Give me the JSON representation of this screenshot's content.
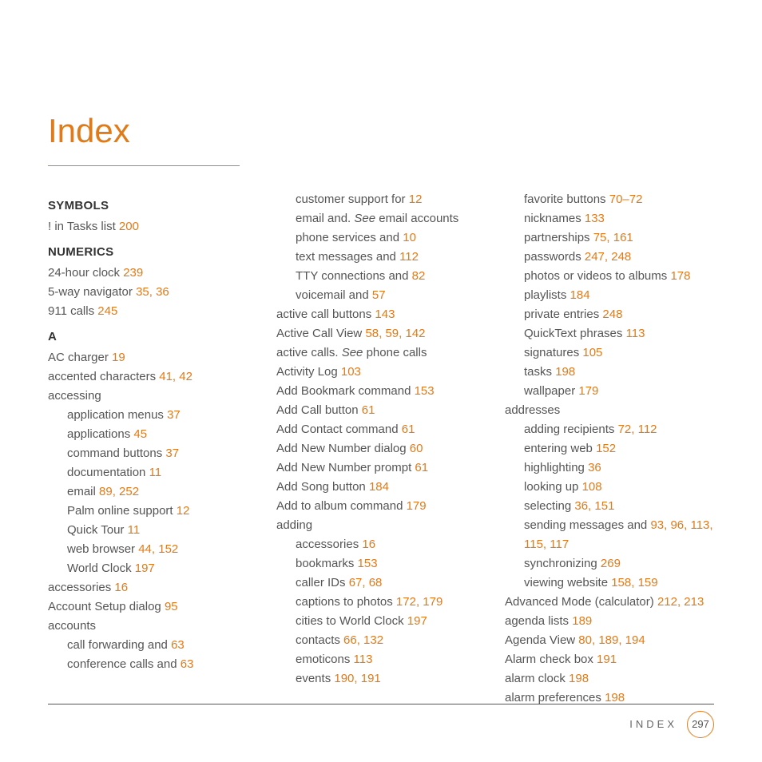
{
  "title": "Index",
  "accent": "#e07b1a",
  "footer": {
    "label": "INDEX",
    "page": "297"
  },
  "col1": {
    "h_symbols": "SYMBOLS",
    "e1": {
      "t": "! in Tasks list ",
      "p": "200"
    },
    "h_numerics": "NUMERICS",
    "e2": {
      "t": "24-hour clock ",
      "p": "239"
    },
    "e3": {
      "t": "5-way navigator ",
      "p": "35, 36"
    },
    "e4": {
      "t": "911 calls ",
      "p": "245"
    },
    "h_a": "A",
    "e5": {
      "t": "AC charger ",
      "p": "19"
    },
    "e6": {
      "t": "accented characters ",
      "p": "41, 42"
    },
    "e7": {
      "t": "accessing"
    },
    "e8": {
      "t": "application menus ",
      "p": "37"
    },
    "e9": {
      "t": "applications ",
      "p": "45"
    },
    "e10": {
      "t": "command buttons ",
      "p": "37"
    },
    "e11": {
      "t": "documentation ",
      "p": "11"
    },
    "e12": {
      "t": "email ",
      "p": "89, 252"
    },
    "e13": {
      "t": "Palm online support ",
      "p": "12"
    },
    "e14": {
      "t": "Quick Tour ",
      "p": "11"
    },
    "e15": {
      "t": "web browser ",
      "p": "44, 152"
    },
    "e16": {
      "t": "World Clock ",
      "p": "197"
    },
    "e17": {
      "t": "accessories ",
      "p": "16"
    },
    "e18": {
      "t": "Account Setup dialog ",
      "p": "95"
    },
    "e19": {
      "t": "accounts"
    },
    "e20": {
      "t": "call forwarding and ",
      "p": "63"
    },
    "e21": {
      "t": "conference calls and ",
      "p": "63"
    }
  },
  "col2": {
    "e1": {
      "t": "customer support for ",
      "p": "12"
    },
    "e2a": "email and. ",
    "e2b": "See",
    "e2c": " email accounts",
    "e3": {
      "t": "phone services and ",
      "p": "10"
    },
    "e4": {
      "t": "text messages and ",
      "p": "112"
    },
    "e5": {
      "t": "TTY connections and ",
      "p": "82"
    },
    "e6": {
      "t": "voicemail and ",
      "p": "57"
    },
    "e7": {
      "t": "active call buttons ",
      "p": "143"
    },
    "e8": {
      "t": "Active Call View ",
      "p": "58, 59, 142"
    },
    "e9a": "active calls. ",
    "e9b": "See",
    "e9c": " phone calls",
    "e10": {
      "t": "Activity Log ",
      "p": "103"
    },
    "e11": {
      "t": "Add Bookmark command ",
      "p": "153"
    },
    "e12": {
      "t": "Add Call button ",
      "p": "61"
    },
    "e13": {
      "t": "Add Contact command ",
      "p": "61"
    },
    "e14": {
      "t": "Add New Number dialog ",
      "p": "60"
    },
    "e15": {
      "t": "Add New Number prompt ",
      "p": "61"
    },
    "e16": {
      "t": "Add Song button ",
      "p": "184"
    },
    "e17": {
      "t": "Add to album command ",
      "p": "179"
    },
    "e18": {
      "t": "adding"
    },
    "e19": {
      "t": "accessories ",
      "p": "16"
    },
    "e20": {
      "t": "bookmarks ",
      "p": "153"
    },
    "e21": {
      "t": "caller IDs ",
      "p": "67, 68"
    },
    "e22": {
      "t": "captions to photos ",
      "p": "172, 179"
    },
    "e23": {
      "t": "cities to World Clock ",
      "p": "197"
    },
    "e24": {
      "t": "contacts ",
      "p": "66, 132"
    },
    "e25": {
      "t": "emoticons ",
      "p": "113"
    },
    "e26": {
      "t": "events ",
      "p": "190, 191"
    }
  },
  "col3": {
    "e1": {
      "t": "favorite buttons ",
      "p": "70–72"
    },
    "e2": {
      "t": "nicknames ",
      "p": "133"
    },
    "e3": {
      "t": "partnerships ",
      "p": "75, 161"
    },
    "e4": {
      "t": "passwords ",
      "p": "247, 248"
    },
    "e5": {
      "t": "photos or videos to albums ",
      "p": "178"
    },
    "e6": {
      "t": "playlists ",
      "p": "184"
    },
    "e7": {
      "t": "private entries ",
      "p": "248"
    },
    "e8": {
      "t": "QuickText phrases ",
      "p": "113"
    },
    "e9": {
      "t": "signatures ",
      "p": "105"
    },
    "e10": {
      "t": "tasks ",
      "p": "198"
    },
    "e11": {
      "t": "wallpaper ",
      "p": "179"
    },
    "e12": {
      "t": "addresses"
    },
    "e13": {
      "t": "adding recipients ",
      "p": "72, 112"
    },
    "e14": {
      "t": "entering web ",
      "p": "152"
    },
    "e15": {
      "t": "highlighting ",
      "p": "36"
    },
    "e16": {
      "t": "looking up ",
      "p": "108"
    },
    "e17": {
      "t": "selecting ",
      "p": "36, 151"
    },
    "e18": {
      "t": "sending messages and ",
      "p": "93, 96, 113, 115, 117"
    },
    "e19": {
      "t": "synchronizing ",
      "p": "269"
    },
    "e20": {
      "t": "viewing website ",
      "p": "158, 159"
    },
    "e21": {
      "t": "Advanced Mode (calculator) ",
      "p": "212, 213"
    },
    "e22": {
      "t": "agenda lists ",
      "p": "189"
    },
    "e23": {
      "t": "Agenda View ",
      "p": "80, 189, 194"
    },
    "e24": {
      "t": "Alarm check box ",
      "p": "191"
    },
    "e25": {
      "t": "alarm clock ",
      "p": "198"
    },
    "e26": {
      "t": "alarm preferences ",
      "p": "198"
    }
  }
}
